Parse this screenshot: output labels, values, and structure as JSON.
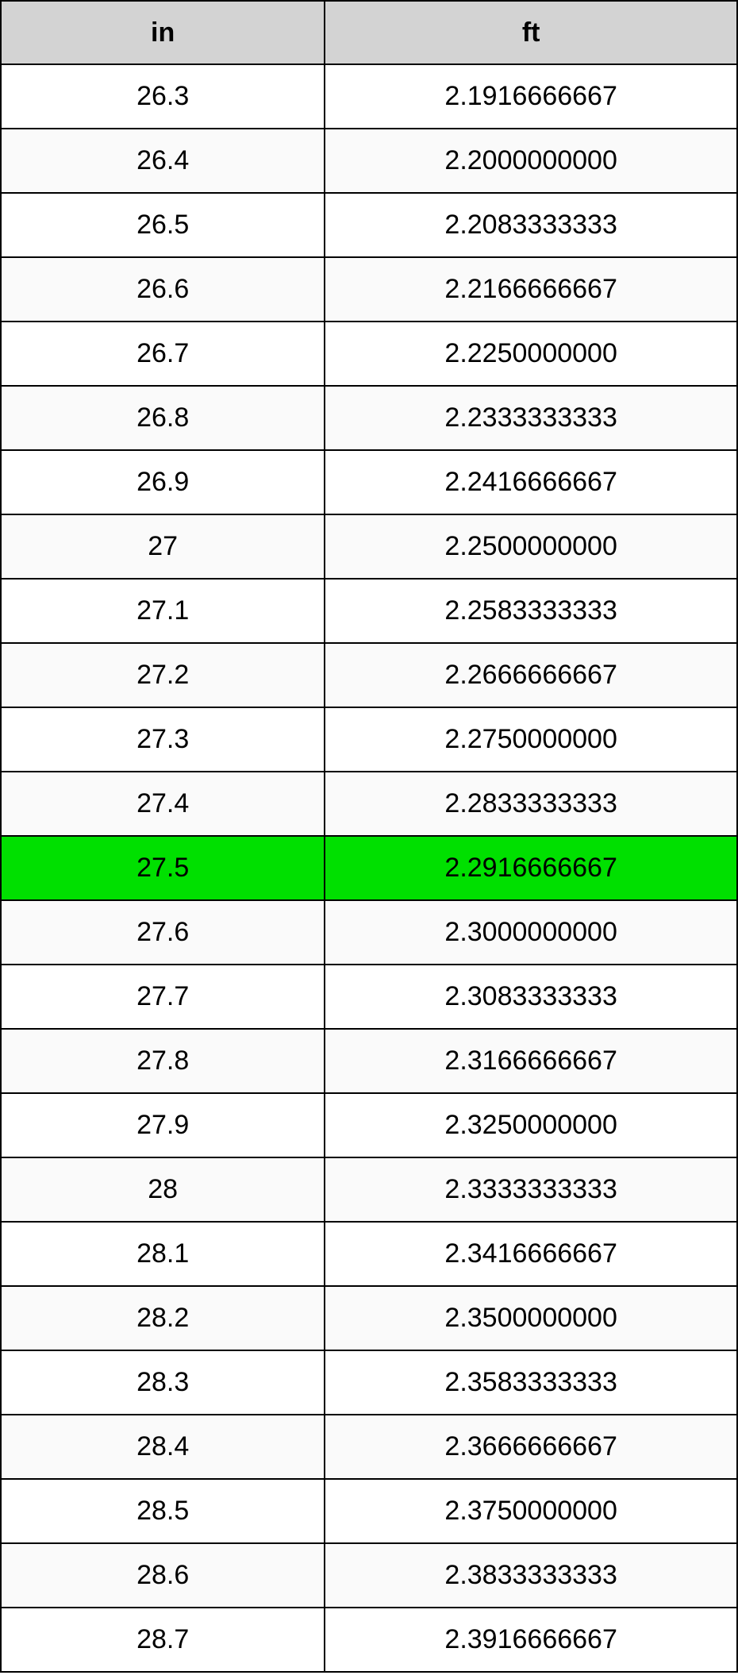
{
  "table": {
    "columns": [
      "in",
      "ft"
    ],
    "header_bg": "#d3d3d3",
    "border_color": "#000000",
    "row_bg_even": "#ffffff",
    "row_bg_odd": "#fafafa",
    "highlight_bg": "#00e000",
    "font_size_pt": 26,
    "highlight_index": 12,
    "rows": [
      {
        "in": "26.3",
        "ft": "2.1916666667"
      },
      {
        "in": "26.4",
        "ft": "2.2000000000"
      },
      {
        "in": "26.5",
        "ft": "2.2083333333"
      },
      {
        "in": "26.6",
        "ft": "2.2166666667"
      },
      {
        "in": "26.7",
        "ft": "2.2250000000"
      },
      {
        "in": "26.8",
        "ft": "2.2333333333"
      },
      {
        "in": "26.9",
        "ft": "2.2416666667"
      },
      {
        "in": "27",
        "ft": "2.2500000000"
      },
      {
        "in": "27.1",
        "ft": "2.2583333333"
      },
      {
        "in": "27.2",
        "ft": "2.2666666667"
      },
      {
        "in": "27.3",
        "ft": "2.2750000000"
      },
      {
        "in": "27.4",
        "ft": "2.2833333333"
      },
      {
        "in": "27.5",
        "ft": "2.2916666667"
      },
      {
        "in": "27.6",
        "ft": "2.3000000000"
      },
      {
        "in": "27.7",
        "ft": "2.3083333333"
      },
      {
        "in": "27.8",
        "ft": "2.3166666667"
      },
      {
        "in": "27.9",
        "ft": "2.3250000000"
      },
      {
        "in": "28",
        "ft": "2.3333333333"
      },
      {
        "in": "28.1",
        "ft": "2.3416666667"
      },
      {
        "in": "28.2",
        "ft": "2.3500000000"
      },
      {
        "in": "28.3",
        "ft": "2.3583333333"
      },
      {
        "in": "28.4",
        "ft": "2.3666666667"
      },
      {
        "in": "28.5",
        "ft": "2.3750000000"
      },
      {
        "in": "28.6",
        "ft": "2.3833333333"
      },
      {
        "in": "28.7",
        "ft": "2.3916666667"
      }
    ]
  }
}
